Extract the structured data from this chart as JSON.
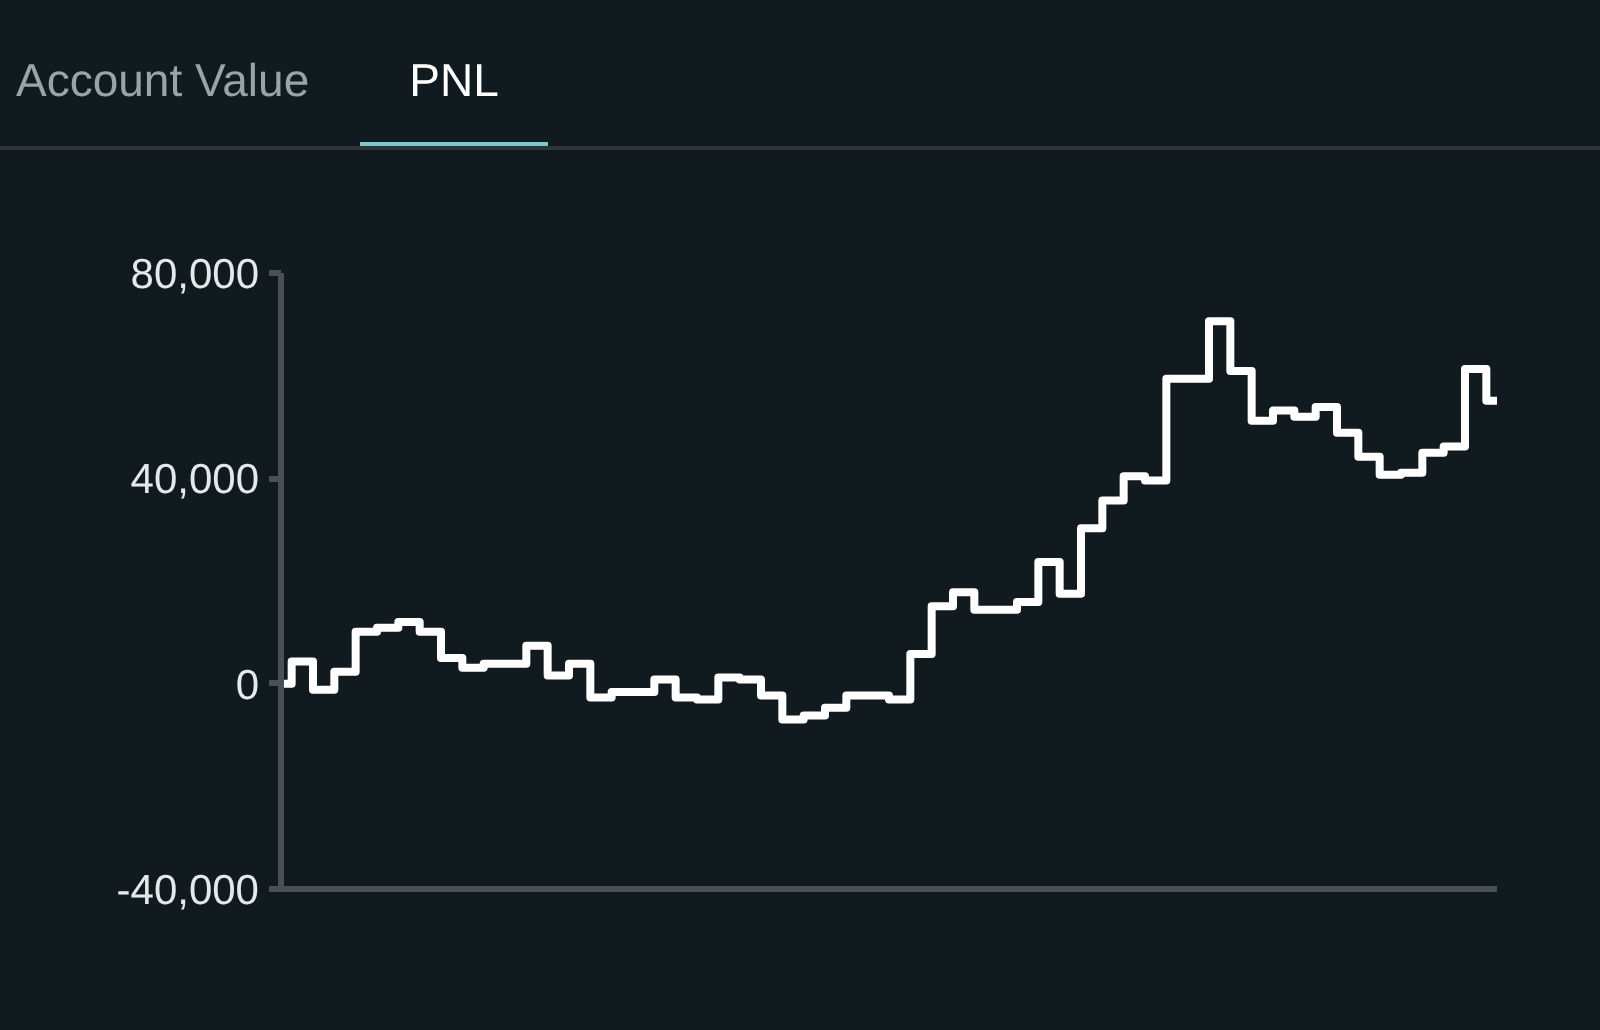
{
  "chart_data": {
    "type": "step",
    "annotations": [
      "Account Value",
      "PNL"
    ],
    "categories": [
      null,
      null,
      null,
      null,
      null,
      null,
      null,
      null,
      null,
      null,
      null,
      null,
      null,
      null,
      null,
      null,
      null,
      null,
      null,
      null,
      null,
      null,
      null,
      null,
      null,
      null,
      null,
      null,
      null,
      null,
      null,
      null,
      null,
      null,
      null,
      null,
      null,
      null,
      null,
      null,
      null,
      null,
      null,
      null,
      null,
      null,
      null,
      null,
      null,
      null,
      null,
      null,
      null,
      null,
      null,
      null,
      null,
      null
    ],
    "series": [
      {
        "color": "#ffffff",
        "values": [
          0,
          4300,
          -1200,
          2300,
          10100,
          10900,
          12000,
          10100,
          5000,
          3100,
          3900,
          3900,
          7400,
          1600,
          3900,
          -2700,
          -1600,
          -1600,
          800,
          -2700,
          -3100,
          1200,
          800,
          -2300,
          -7000,
          -6200,
          -4700,
          -2300,
          -2300,
          -3100,
          5800,
          15100,
          17800,
          14400,
          14400,
          15900,
          23700,
          17500,
          30300,
          35700,
          40400,
          39600,
          59400,
          59400,
          70600,
          60900,
          51200,
          53200,
          52000,
          53900,
          48900,
          44200,
          40700,
          41100,
          45000,
          46200,
          61300,
          55100
        ]
      }
    ],
    "ylim": [
      -40000,
      80000
    ],
    "yticks": [
      {
        "value": -40000,
        "label": "-40,000"
      },
      {
        "value": 0,
        "label": "0"
      },
      {
        "value": 40000,
        "label": "40,000"
      },
      {
        "value": 80000,
        "label": "80,000"
      }
    ],
    "tick_labels": "y",
    "grid": false
  }
}
